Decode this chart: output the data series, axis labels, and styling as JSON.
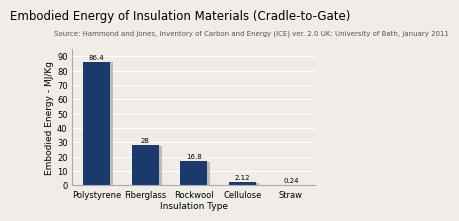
{
  "title": "Embodied Energy of Insulation Materials (Cradle-to-Gate)",
  "source": "Source: Hammond and Jones, Inventory of Carbon and Energy (ICE) ver. 2.0 UK: University of Bath, January 2011",
  "categories": [
    "Polystyrene",
    "Fiberglass",
    "Rockwool",
    "Cellulose",
    "Straw"
  ],
  "values": [
    86.4,
    28,
    16.8,
    2.12,
    0.24
  ],
  "bar_color": "#1a3a6b",
  "shadow_color": "#999999",
  "xlabel": "Insulation Type",
  "ylabel": "Embodied Energy - MJ/Kg",
  "ylim": [
    0,
    95
  ],
  "yticks": [
    0,
    10,
    20,
    30,
    40,
    50,
    60,
    70,
    80,
    90
  ],
  "background_color": "#f0ede8",
  "plot_bg_color": "#f0ede8",
  "title_fontsize": 8.5,
  "source_fontsize": 5.0,
  "axis_label_fontsize": 6.5,
  "tick_fontsize": 6.0,
  "value_labels": [
    "86.4",
    "28",
    "16.8",
    "2.12",
    "0.24"
  ]
}
